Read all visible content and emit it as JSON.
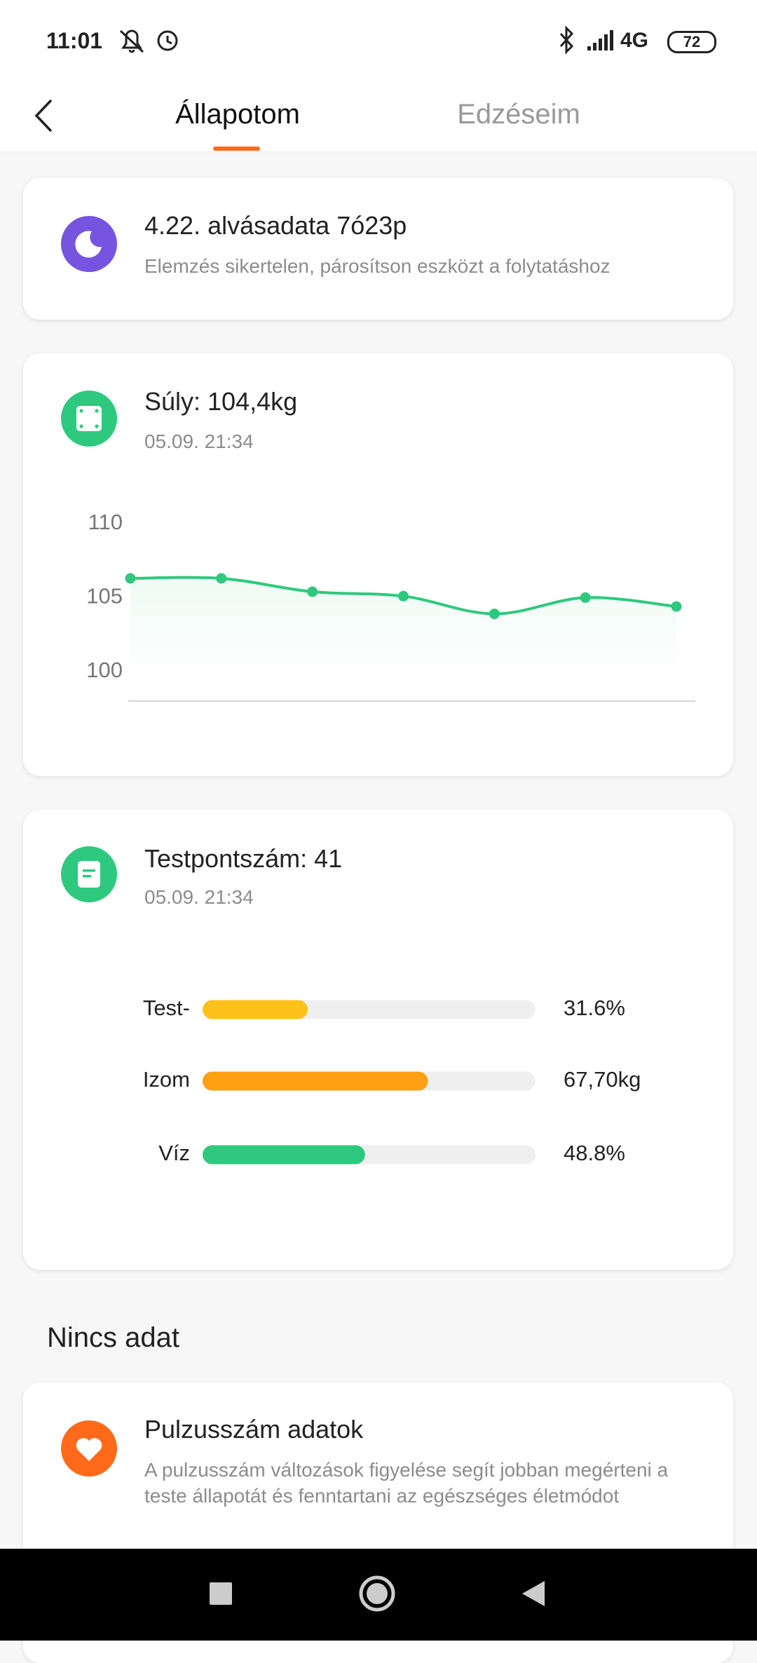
{
  "status_bar": {
    "time": "11:01",
    "network": "4G",
    "battery": "72"
  },
  "tabs": [
    "Állapotom",
    "Edzéseim"
  ],
  "sleep_card": {
    "title": "4.22. alvásadata 7ó23p",
    "subtitle": "Elemzés sikertelen, párosítson eszközt a folytatáshoz"
  },
  "weight_card": {
    "title": "Súly: 104,4kg",
    "timestamp": "05.09. 21:34",
    "chart": {
      "type": "line",
      "values": [
        106.3,
        106.3,
        105.4,
        105.1,
        103.9,
        105.0,
        104.4
      ],
      "ylim": [
        98,
        110
      ],
      "yticks": [
        100,
        105,
        110
      ],
      "color": "#2ec97e"
    }
  },
  "score_card": {
    "title": "Testpontszám: 41",
    "timestamp": "05.09. 21:34",
    "chart": {
      "type": "bar",
      "categories": [
        "Test-",
        "Izom",
        "Víz"
      ],
      "values": [
        31.6,
        67.7,
        48.8
      ],
      "value_labels": [
        "31.6%",
        "67,70kg",
        "48.8%"
      ],
      "xlim": [
        0,
        100
      ],
      "colors": [
        "#fcc21b",
        "#ff9f12",
        "#2ec97e"
      ]
    }
  },
  "no_data_heading": "Nincs adat",
  "heart_card": {
    "title": "Pulzusszám adatok",
    "description": "A pulzusszám változások figyelése segít jobban megérteni a teste állapotát és fenntartani az egészséges életmódot"
  }
}
